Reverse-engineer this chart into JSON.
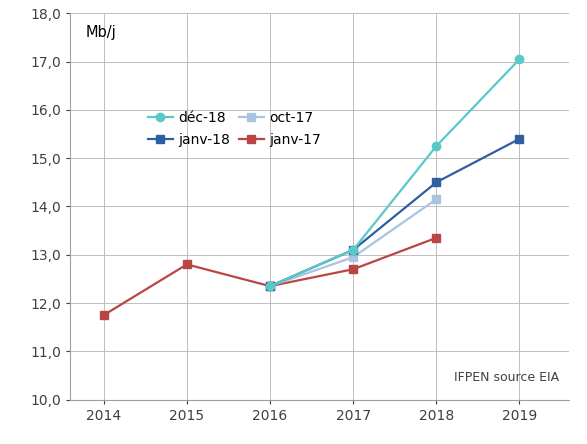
{
  "series": [
    {
      "label": "déc-18",
      "x": [
        2016,
        2017,
        2018,
        2019
      ],
      "y": [
        12.35,
        13.1,
        15.25,
        17.05
      ],
      "color": "#5BC8C8",
      "marker": "o",
      "linewidth": 1.6,
      "markersize": 6,
      "zorder": 4
    },
    {
      "label": "janv-18",
      "x": [
        2016,
        2017,
        2018,
        2019
      ],
      "y": [
        12.35,
        13.1,
        14.5,
        15.4
      ],
      "color": "#2E5FA3",
      "marker": "s",
      "linewidth": 1.6,
      "markersize": 6,
      "zorder": 3
    },
    {
      "label": "oct-17",
      "x": [
        2016,
        2017,
        2018
      ],
      "y": [
        12.35,
        12.95,
        14.15
      ],
      "color": "#A9C4E0",
      "marker": "s",
      "linewidth": 1.6,
      "markersize": 6,
      "zorder": 2
    },
    {
      "label": "janv-17",
      "x": [
        2014,
        2015,
        2016,
        2017,
        2018
      ],
      "y": [
        11.75,
        12.8,
        12.35,
        12.7,
        13.35
      ],
      "color": "#B94644",
      "marker": "s",
      "linewidth": 1.6,
      "markersize": 6,
      "zorder": 1
    }
  ],
  "ylabel": "Mb/j",
  "ylim": [
    10.0,
    18.0
  ],
  "ytick_step": 1.0,
  "xlim": [
    2013.6,
    2019.6
  ],
  "xticks": [
    2014,
    2015,
    2016,
    2017,
    2018,
    2019
  ],
  "annotation": "IFPEN source EIA",
  "background_color": "#FFFFFF",
  "grid_color": "#BEBEBE"
}
